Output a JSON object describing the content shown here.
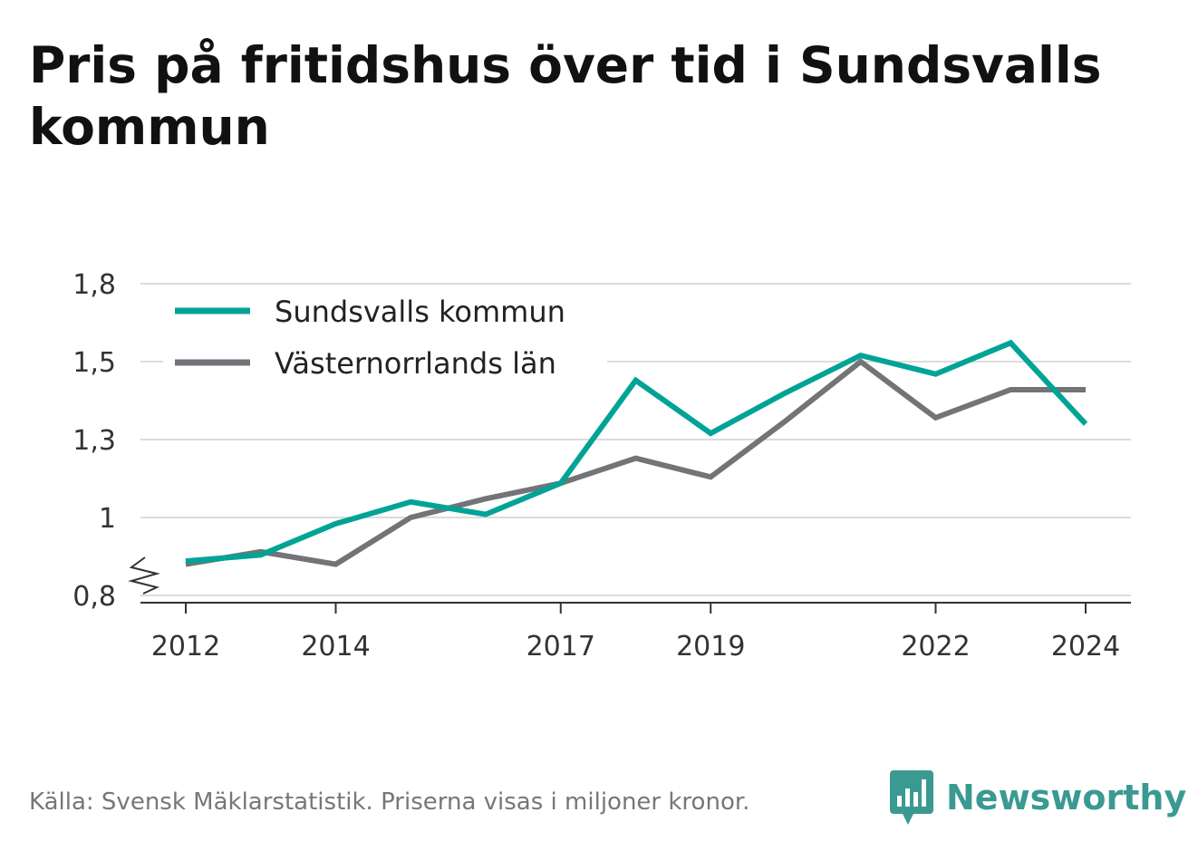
{
  "title": "Pris på fritidshus över tid i Sundsvalls kommun",
  "source": "Källa: Svensk Mäklarstatistik. Priserna visas i miljoner kronor.",
  "brand": {
    "name": "Newsworthy",
    "icon": "bar-chart-icon",
    "color": "#3a9a92"
  },
  "chart_data": {
    "type": "line",
    "title": "Pris på fritidshus över tid i Sundsvalls kommun",
    "xlabel": "",
    "ylabel": "",
    "x": [
      2012,
      2013,
      2014,
      2015,
      2016,
      2017,
      2018,
      2019,
      2020,
      2021,
      2022,
      2023,
      2024
    ],
    "x_ticks": [
      2012,
      2014,
      2017,
      2019,
      2022,
      2024
    ],
    "x_tick_labels": [
      "2012",
      "2014",
      "2017",
      "2019",
      "2022",
      "2024"
    ],
    "ylim": [
      0.8,
      1.8
    ],
    "y_ticks": [
      0.8,
      1.05,
      1.3,
      1.55,
      1.8
    ],
    "y_tick_labels": [
      "0,8",
      "1",
      "1,3",
      "1,5",
      "1,8"
    ],
    "axis_break": true,
    "grid": true,
    "legend": "top-left",
    "series": [
      {
        "name": "Sundsvalls kommun",
        "color": "#00a396",
        "values": [
          0.91,
          0.93,
          1.03,
          1.1,
          1.06,
          1.16,
          1.49,
          1.32,
          1.45,
          1.57,
          1.51,
          1.61,
          1.35
        ]
      },
      {
        "name": "Västernorrlands län",
        "color": "#737378",
        "values": [
          0.9,
          0.94,
          0.9,
          1.05,
          1.11,
          1.16,
          1.24,
          1.18,
          1.36,
          1.55,
          1.37,
          1.46,
          1.46
        ]
      }
    ]
  }
}
